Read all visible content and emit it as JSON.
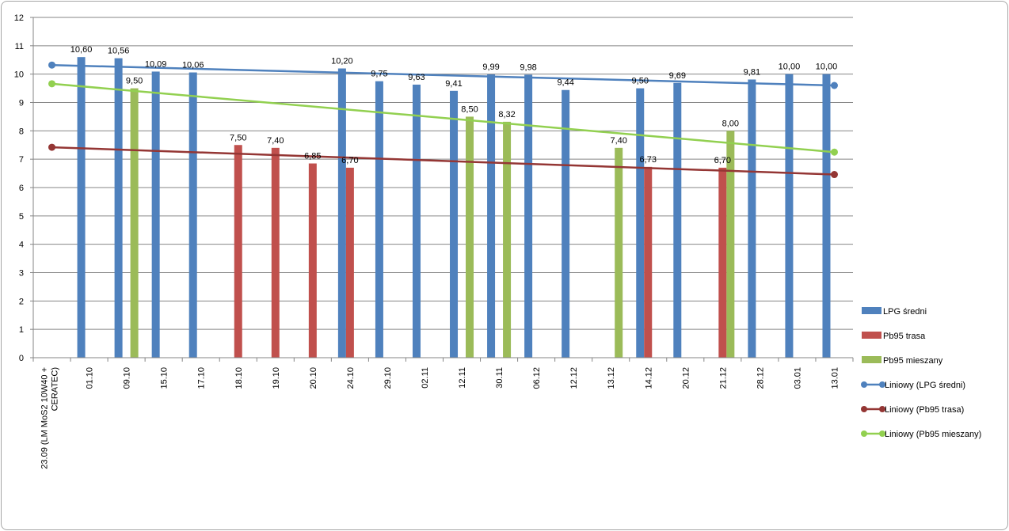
{
  "chart_data": {
    "type": "bar",
    "categories": [
      "23.09 (LM MoS2 10W40 + CERATEC)",
      "01.10",
      "09.10",
      "15.10",
      "17.10",
      "18.10",
      "19.10",
      "20.10",
      "24.10",
      "29.10",
      "02.11",
      "12.11",
      "30.11",
      "06.12",
      "12.12",
      "13.12",
      "14.12",
      "20.12",
      "21.12",
      "28.12",
      "03.01",
      "13.01"
    ],
    "ylim": [
      0,
      12
    ],
    "yticks": [
      "0",
      "1",
      "2",
      "3",
      "4",
      "5",
      "6",
      "7",
      "8",
      "9",
      "10",
      "11",
      "12"
    ],
    "grid": true,
    "legend_position": "right",
    "series": [
      {
        "name": "LPG średni",
        "color": "#4f81bd",
        "values": [
          null,
          10.6,
          10.56,
          10.09,
          10.06,
          null,
          null,
          null,
          10.2,
          9.75,
          9.63,
          9.41,
          9.99,
          9.98,
          9.44,
          null,
          9.5,
          9.69,
          null,
          9.81,
          10.0,
          10.0
        ],
        "labels": [
          null,
          "10,60",
          "10,56",
          "10,09",
          "10,06",
          null,
          null,
          null,
          "10,20",
          "9,75",
          "9,63",
          "9,41",
          "9,99",
          "9,98",
          "9,44",
          null,
          "9,50",
          "9,69",
          null,
          "9,81",
          "10,00",
          "10,00"
        ]
      },
      {
        "name": "Pb95 trasa",
        "color": "#c0504d",
        "values": [
          null,
          null,
          null,
          null,
          null,
          7.5,
          7.4,
          6.85,
          6.7,
          null,
          null,
          null,
          null,
          null,
          null,
          null,
          6.73,
          null,
          6.7,
          null,
          null,
          null
        ],
        "labels": [
          null,
          null,
          null,
          null,
          null,
          "7,50",
          "7,40",
          "6,85",
          "6,70",
          null,
          null,
          null,
          null,
          null,
          null,
          null,
          "6,73",
          null,
          "6,70",
          null,
          null,
          null
        ]
      },
      {
        "name": "Pb95 mieszany",
        "color": "#9bbb59",
        "values": [
          null,
          null,
          9.5,
          null,
          null,
          null,
          null,
          null,
          null,
          null,
          null,
          8.5,
          8.32,
          null,
          null,
          7.4,
          null,
          null,
          8.0,
          null,
          null,
          null
        ],
        "labels": [
          null,
          null,
          "9,50",
          null,
          null,
          null,
          null,
          null,
          null,
          null,
          null,
          "8,50",
          "8,32",
          null,
          null,
          "7,40",
          null,
          null,
          "8,00",
          null,
          null,
          null
        ]
      }
    ],
    "trendlines": [
      {
        "name": "Liniowy (LPG średni)",
        "color": "#4f81bd",
        "start": 10.32,
        "end": 9.6
      },
      {
        "name": "Liniowy (Pb95 trasa)",
        "color": "#943634",
        "start": 7.42,
        "end": 6.46
      },
      {
        "name": "Liniowy (Pb95 mieszany)",
        "color": "#92d050",
        "start": 9.66,
        "end": 7.25
      }
    ]
  }
}
